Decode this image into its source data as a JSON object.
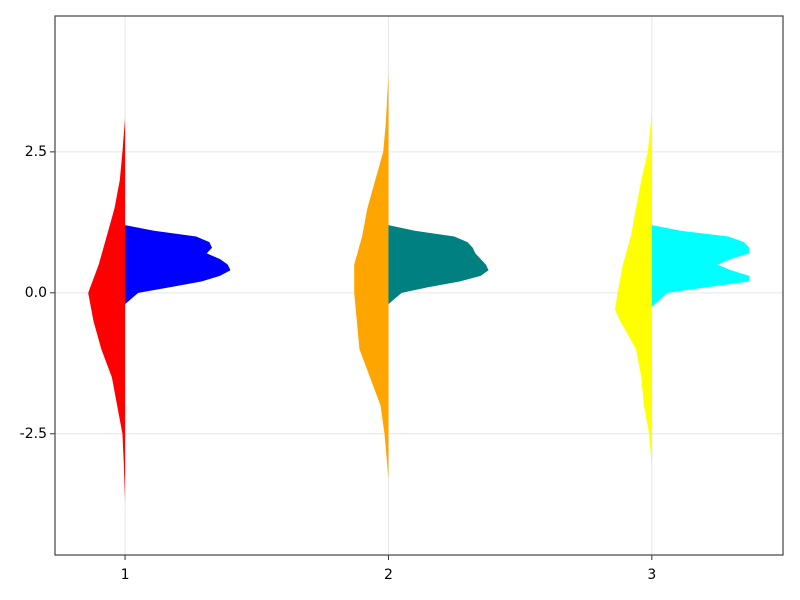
{
  "chart_data": {
    "type": "violin",
    "xlim": [
      0.734,
      3.498
    ],
    "xticks": [
      1,
      2,
      3
    ],
    "ylim": [
      -4.65,
      4.91
    ],
    "yticks": [
      -2.5,
      {
        "value": 0,
        "label": "0.0"
      },
      2.5
    ],
    "grid": true,
    "series": [
      {
        "x": 1,
        "side": "left",
        "color": "#ff0000",
        "y": [
          3.1,
          2.5,
          2,
          1.5,
          1,
          0.5,
          0,
          -0.5,
          -1,
          -1.5,
          -2,
          -2.5,
          -3,
          -3.7
        ],
        "width": [
          0,
          0.01,
          0.02,
          0.04,
          0.07,
          0.1,
          0.14,
          0.12,
          0.09,
          0.05,
          0.03,
          0.01,
          0.005,
          0
        ]
      },
      {
        "x": 1,
        "side": "right",
        "color": "#0000ff",
        "y": [
          1.2,
          1.1,
          1.0,
          0.9,
          0.8,
          0.7,
          0.6,
          0.5,
          0.4,
          0.3,
          0.2,
          0.1,
          0,
          -0.2
        ],
        "width": [
          0,
          0.11,
          0.27,
          0.32,
          0.33,
          0.31,
          0.36,
          0.39,
          0.4,
          0.36,
          0.29,
          0.17,
          0.05,
          0
        ]
      },
      {
        "x": 2,
        "side": "left",
        "color": "#ffa500",
        "y": [
          3.9,
          3,
          2.5,
          2,
          1.5,
          1,
          0.5,
          0,
          -0.5,
          -1,
          -1.5,
          -2,
          -2.5,
          -3.3
        ],
        "width": [
          0,
          0.01,
          0.02,
          0.05,
          0.08,
          0.1,
          0.13,
          0.13,
          0.12,
          0.11,
          0.07,
          0.03,
          0.015,
          0
        ]
      },
      {
        "x": 2,
        "side": "right",
        "color": "#008080",
        "y": [
          1.2,
          1.1,
          1.0,
          0.9,
          0.8,
          0.7,
          0.6,
          0.5,
          0.4,
          0.3,
          0.2,
          0.1,
          0,
          -0.2
        ],
        "width": [
          0,
          0.1,
          0.25,
          0.3,
          0.32,
          0.33,
          0.35,
          0.37,
          0.38,
          0.35,
          0.27,
          0.15,
          0.05,
          0
        ]
      },
      {
        "x": 3,
        "side": "left",
        "color": "#ffff00",
        "y": [
          3.2,
          2.5,
          2,
          1.5,
          1,
          0.5,
          0,
          -0.3,
          -0.5,
          -1,
          -1.5,
          -2,
          -2.5,
          -3.1
        ],
        "width": [
          0,
          0.015,
          0.04,
          0.06,
          0.08,
          0.11,
          0.13,
          0.14,
          0.12,
          0.06,
          0.04,
          0.03,
          0.01,
          0
        ]
      },
      {
        "x": 3,
        "side": "right",
        "color": "#00ffff",
        "y": [
          1.2,
          1.1,
          1.0,
          0.9,
          0.8,
          0.7,
          0.6,
          0.5,
          0.4,
          0.3,
          0.2,
          0.1,
          0,
          -0.25
        ],
        "width": [
          0,
          0.11,
          0.29,
          0.35,
          0.37,
          0.37,
          0.3,
          0.25,
          0.3,
          0.37,
          0.37,
          0.21,
          0.06,
          0
        ]
      }
    ]
  }
}
